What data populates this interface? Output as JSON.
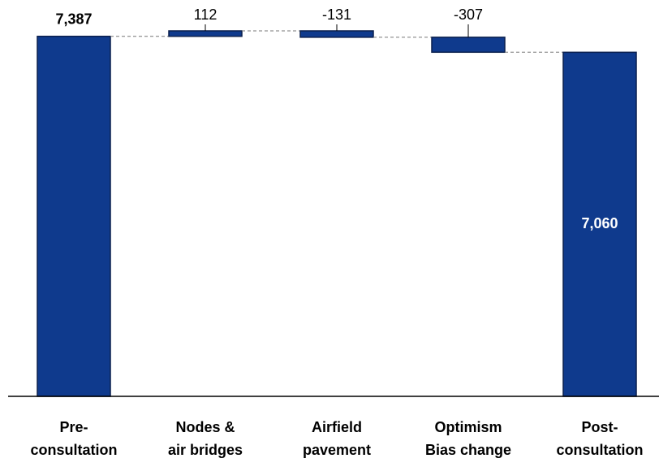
{
  "chart_data": {
    "type": "waterfall",
    "categories": [
      "Pre-\nconsultation",
      "Nodes &\nair bridges",
      "Airfield\npavement",
      "Optimism\nBias change",
      "Post-\nconsultation"
    ],
    "values": [
      7387,
      112,
      -131,
      -307,
      7060
    ],
    "value_labels": [
      "7,387",
      "112",
      "-131",
      "-307",
      "7,060"
    ],
    "measure": [
      "absolute",
      "relative",
      "relative",
      "relative",
      "absolute"
    ],
    "label_position": [
      "above",
      "above",
      "above",
      "above",
      "inside"
    ],
    "color": "#0f3a8d"
  }
}
